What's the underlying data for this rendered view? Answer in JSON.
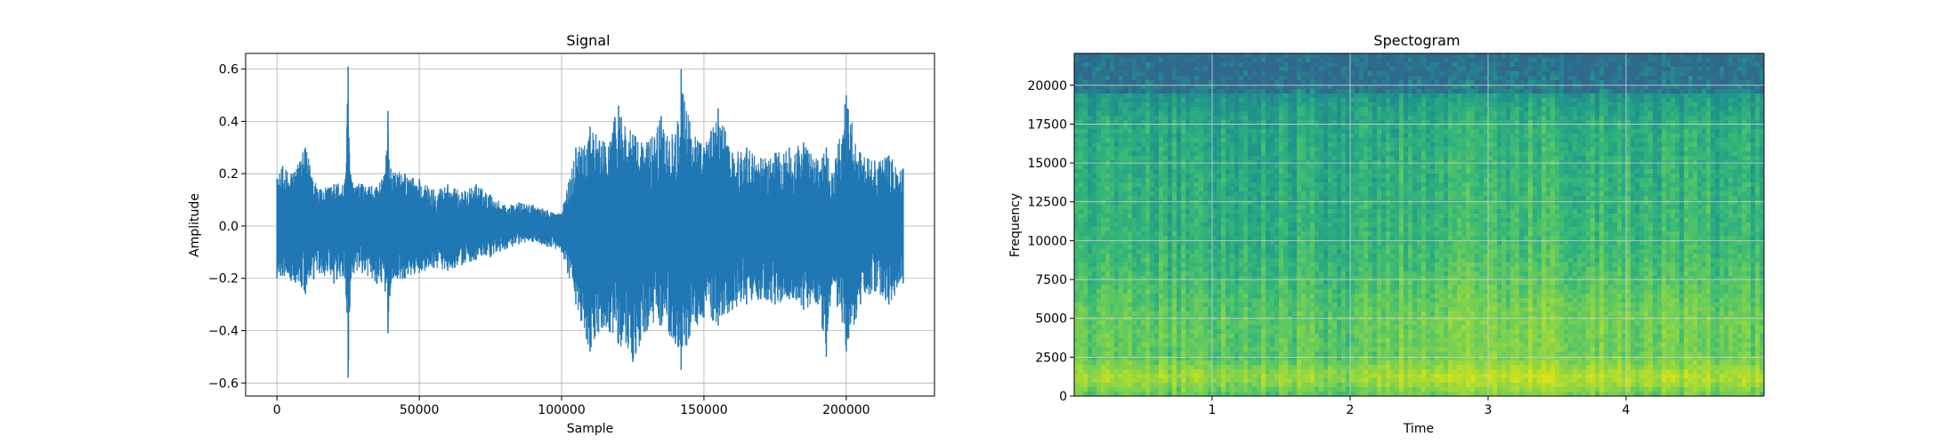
{
  "chart_data": [
    {
      "type": "line",
      "title": "Signal",
      "xlabel": "Sample",
      "ylabel": "Amplitude",
      "xlim": [
        -11000,
        231000
      ],
      "ylim": [
        -0.65,
        0.66
      ],
      "xticks": [
        0,
        50000,
        100000,
        150000,
        200000
      ],
      "xtick_labels": [
        "0",
        "50000",
        "100000",
        "150000",
        "200000"
      ],
      "yticks": [
        -0.6,
        -0.4,
        -0.2,
        0.0,
        0.2,
        0.4,
        0.6
      ],
      "ytick_labels": [
        "−0.6",
        "−0.4",
        "−0.2",
        "0.0",
        "0.2",
        "0.4",
        "0.6"
      ],
      "grid": true,
      "color": "#1f77b4",
      "series": [
        {
          "x": [
            0,
            2000,
            5000,
            10000,
            15000,
            20000,
            24000,
            25000,
            26000,
            30000,
            35000,
            38000,
            39000,
            40000,
            45000,
            50000,
            55000,
            60000,
            65000,
            70000,
            75000,
            80000,
            85000,
            90000,
            95000,
            100000,
            105000,
            110000,
            115000,
            120000,
            125000,
            130000,
            135000,
            140000,
            142000,
            145000,
            150000,
            155000,
            160000,
            165000,
            170000,
            175000,
            180000,
            185000,
            190000,
            193000,
            195000,
            200000,
            205000,
            210000,
            215000,
            220000
          ],
          "upper": [
            0.18,
            0.23,
            0.2,
            0.3,
            0.14,
            0.16,
            0.18,
            0.61,
            0.18,
            0.16,
            0.15,
            0.2,
            0.44,
            0.22,
            0.2,
            0.18,
            0.14,
            0.16,
            0.13,
            0.16,
            0.12,
            0.08,
            0.09,
            0.08,
            0.06,
            0.05,
            0.3,
            0.38,
            0.32,
            0.46,
            0.35,
            0.32,
            0.42,
            0.35,
            0.6,
            0.4,
            0.3,
            0.45,
            0.28,
            0.3,
            0.26,
            0.28,
            0.3,
            0.32,
            0.25,
            0.3,
            0.2,
            0.5,
            0.28,
            0.25,
            0.27,
            0.22
          ],
          "lower": [
            -0.2,
            -0.19,
            -0.21,
            -0.26,
            -0.18,
            -0.22,
            -0.2,
            -0.58,
            -0.2,
            -0.18,
            -0.22,
            -0.25,
            -0.41,
            -0.22,
            -0.2,
            -0.18,
            -0.16,
            -0.17,
            -0.15,
            -0.13,
            -0.12,
            -0.09,
            -0.07,
            -0.06,
            -0.08,
            -0.1,
            -0.3,
            -0.48,
            -0.38,
            -0.45,
            -0.52,
            -0.4,
            -0.38,
            -0.45,
            -0.55,
            -0.42,
            -0.35,
            -0.38,
            -0.32,
            -0.3,
            -0.28,
            -0.3,
            -0.28,
            -0.32,
            -0.3,
            -0.5,
            -0.22,
            -0.48,
            -0.3,
            -0.25,
            -0.3,
            -0.22
          ]
        }
      ]
    },
    {
      "type": "heatmap",
      "title": "Spectogram",
      "xlabel": "Time",
      "ylabel": "Frequency",
      "xlim": [
        0.0,
        5.0
      ],
      "ylim": [
        0,
        22050
      ],
      "xticks": [
        1,
        2,
        3,
        4
      ],
      "xtick_labels": [
        "1",
        "2",
        "3",
        "4"
      ],
      "yticks": [
        0,
        2500,
        5000,
        7500,
        10000,
        12500,
        15000,
        17500,
        20000
      ],
      "ytick_labels": [
        "0",
        "2500",
        "5000",
        "7500",
        "10000",
        "12500",
        "15000",
        "17500",
        "20000"
      ],
      "grid": true,
      "colormap": "viridis",
      "colormap_stops": [
        "#30688e",
        "#277f8e",
        "#1f988b",
        "#35b779",
        "#6ece58",
        "#a5db36",
        "#d8e219"
      ],
      "band_energy": {
        "freq_hz": [
          0,
          1200,
          2500,
          5000,
          7500,
          10000,
          15000,
          17500,
          19000,
          20000,
          22050
        ],
        "level_0_to_1": [
          0.7,
          0.95,
          0.72,
          0.72,
          0.62,
          0.55,
          0.5,
          0.48,
          0.38,
          0.28,
          0.18
        ]
      },
      "time_energy": {
        "time_s": [
          0.0,
          0.5,
          1.0,
          1.5,
          1.8,
          2.0,
          2.2,
          2.5,
          3.0,
          3.5,
          4.0,
          4.5,
          5.0
        ],
        "level_0_to_1": [
          0.55,
          0.55,
          0.52,
          0.5,
          0.5,
          0.35,
          0.62,
          0.68,
          0.72,
          0.78,
          0.68,
          0.62,
          0.6
        ]
      }
    }
  ]
}
